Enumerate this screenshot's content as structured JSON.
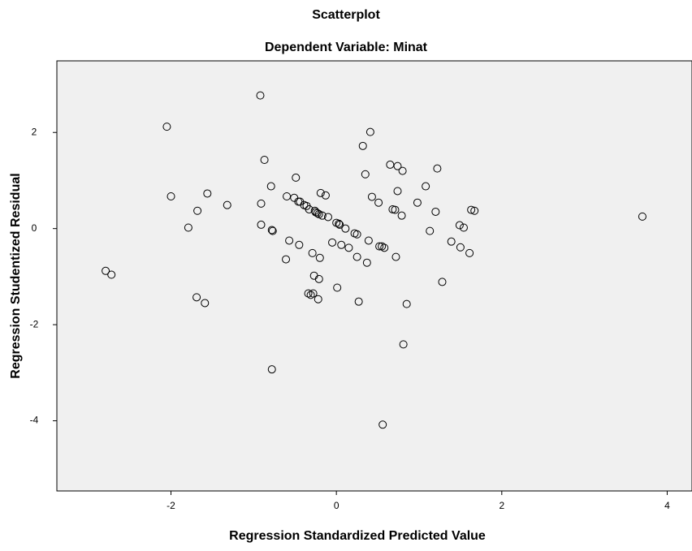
{
  "chart_data": {
    "type": "scatter",
    "title": "Scatterplot",
    "subtitle": "Dependent Variable: Minat",
    "x_label": "Regression Standardized Predicted Value",
    "y_label": "Regression Studentized Residual",
    "color": "#000000",
    "background": "#f0f0f0",
    "xlim": [
      -3.38,
      4.3
    ],
    "ylim": [
      -5.46,
      3.49
    ],
    "xticks": [
      -2,
      0,
      2,
      4
    ],
    "yticks": [
      2,
      0,
      -2,
      -4
    ],
    "x": [
      -2.79,
      -2.72,
      -2.05,
      -2.0,
      -1.79,
      -1.68,
      -1.69,
      -1.59,
      -1.56,
      -1.32,
      -0.92,
      -0.87,
      -0.91,
      -0.91,
      -0.79,
      -0.78,
      -0.77,
      -0.78,
      -0.61,
      -0.6,
      -0.57,
      -0.49,
      -0.51,
      -0.45,
      -0.46,
      -0.44,
      -0.39,
      -0.36,
      -0.34,
      -0.31,
      -0.33,
      -0.29,
      -0.28,
      -0.27,
      -0.26,
      -0.25,
      -0.23,
      -0.22,
      -0.21,
      -0.2,
      -0.21,
      -0.19,
      -0.17,
      -0.13,
      -0.1,
      -0.05,
      0.0,
      0.01,
      0.03,
      0.04,
      0.06,
      0.11,
      0.15,
      0.22,
      0.25,
      0.25,
      0.27,
      0.32,
      0.35,
      0.37,
      0.39,
      0.41,
      0.43,
      0.51,
      0.52,
      0.55,
      0.56,
      0.58,
      0.65,
      0.68,
      0.71,
      0.72,
      0.74,
      0.74,
      0.79,
      0.8,
      0.81,
      0.85,
      0.98,
      1.08,
      1.13,
      1.22,
      1.2,
      1.28,
      1.39,
      1.49,
      1.5,
      1.54,
      1.61,
      1.63,
      1.67,
      3.7
    ],
    "values": [
      -0.88,
      -0.96,
      2.12,
      0.67,
      0.02,
      0.37,
      -1.43,
      -1.55,
      0.73,
      0.49,
      2.77,
      1.43,
      0.52,
      0.08,
      0.88,
      -0.03,
      -0.05,
      -2.93,
      -0.64,
      0.67,
      -0.25,
      1.06,
      0.64,
      -0.34,
      0.56,
      0.56,
      0.49,
      0.47,
      -1.35,
      -1.38,
      0.4,
      -0.51,
      -1.35,
      -0.98,
      0.37,
      0.34,
      0.32,
      -1.47,
      0.3,
      -0.61,
      -1.05,
      0.74,
      0.27,
      0.69,
      0.24,
      -0.29,
      0.12,
      -1.23,
      0.1,
      0.08,
      -0.34,
      0,
      -0.4,
      -0.1,
      -0.12,
      -0.59,
      -1.52,
      1.72,
      1.13,
      -0.71,
      -0.25,
      2.01,
      0.66,
      0.54,
      -0.37,
      -0.37,
      -4.08,
      -0.4,
      1.33,
      0.4,
      0.39,
      -0.59,
      1.3,
      0.78,
      0.27,
      1.2,
      -2.41,
      -1.57,
      0.54,
      0.88,
      -0.05,
      1.25,
      0.35,
      -1.11,
      -0.27,
      0.07,
      -0.39,
      0.02,
      -0.51,
      0.39,
      0.37,
      0.25
    ]
  }
}
